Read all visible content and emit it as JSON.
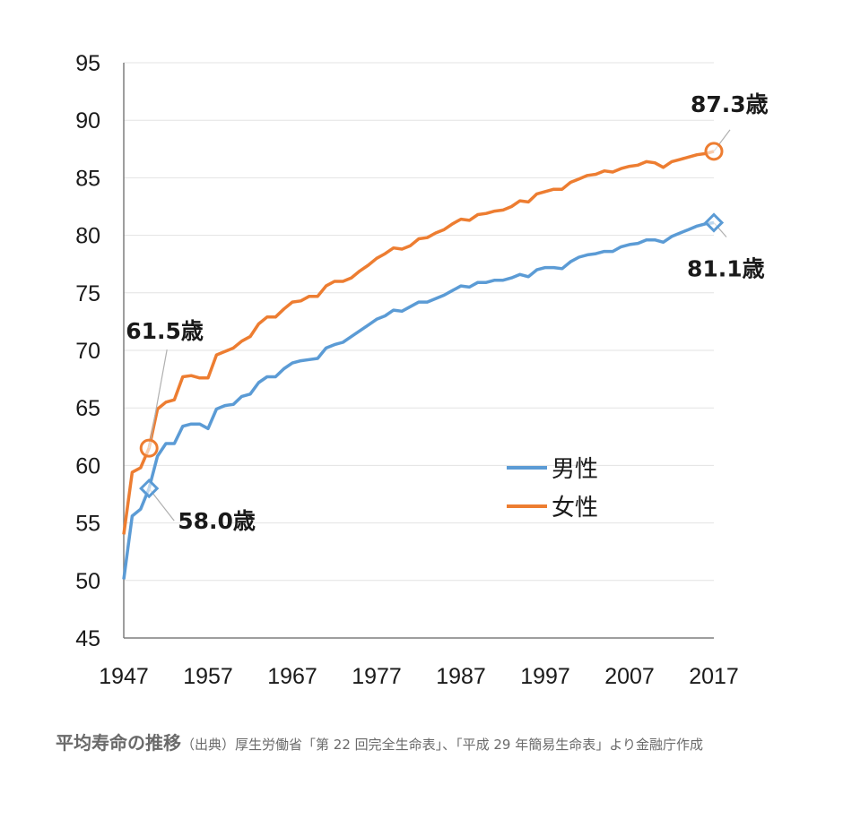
{
  "chart_data": {
    "type": "line",
    "title": "",
    "xlabel": "",
    "ylabel": "",
    "xlim": [
      1947,
      2017
    ],
    "ylim": [
      45,
      95
    ],
    "x_ticks": [
      "1947",
      "1957",
      "1967",
      "1977",
      "1987",
      "1997",
      "2007",
      "2017"
    ],
    "y_ticks": [
      "95",
      "90",
      "85",
      "80",
      "75",
      "70",
      "65",
      "60",
      "55",
      "50",
      "45"
    ],
    "grid": true,
    "legend_position": "right-middle",
    "x": [
      1947,
      1948,
      1949,
      1950,
      1951,
      1952,
      1953,
      1954,
      1955,
      1956,
      1957,
      1958,
      1959,
      1960,
      1961,
      1962,
      1963,
      1964,
      1965,
      1966,
      1967,
      1968,
      1969,
      1970,
      1971,
      1972,
      1973,
      1974,
      1975,
      1976,
      1977,
      1978,
      1979,
      1980,
      1981,
      1982,
      1983,
      1984,
      1985,
      1986,
      1987,
      1988,
      1989,
      1990,
      1991,
      1992,
      1993,
      1994,
      1995,
      1996,
      1997,
      1998,
      1999,
      2000,
      2001,
      2002,
      2003,
      2004,
      2005,
      2006,
      2007,
      2008,
      2009,
      2010,
      2011,
      2012,
      2013,
      2014,
      2015,
      2016,
      2017
    ],
    "series": [
      {
        "name": "男性",
        "color": "#5B9BD5",
        "values": [
          50.1,
          55.6,
          56.2,
          58.0,
          60.8,
          61.9,
          61.9,
          63.4,
          63.6,
          63.6,
          63.2,
          64.9,
          65.2,
          65.3,
          66.0,
          66.2,
          67.2,
          67.7,
          67.7,
          68.4,
          68.9,
          69.1,
          69.2,
          69.3,
          70.2,
          70.5,
          70.7,
          71.2,
          71.7,
          72.2,
          72.7,
          73.0,
          73.5,
          73.4,
          73.8,
          74.2,
          74.2,
          74.5,
          74.8,
          75.2,
          75.6,
          75.5,
          75.9,
          75.9,
          76.1,
          76.1,
          76.3,
          76.6,
          76.4,
          77.0,
          77.2,
          77.2,
          77.1,
          77.7,
          78.1,
          78.3,
          78.4,
          78.6,
          78.6,
          79.0,
          79.2,
          79.3,
          79.6,
          79.6,
          79.4,
          79.9,
          80.2,
          80.5,
          80.8,
          81.0,
          81.1
        ]
      },
      {
        "name": "女性",
        "color": "#ED7D31",
        "values": [
          54.0,
          59.4,
          59.8,
          61.5,
          64.9,
          65.5,
          65.7,
          67.7,
          67.8,
          67.6,
          67.6,
          69.6,
          69.9,
          70.2,
          70.8,
          71.2,
          72.3,
          72.9,
          72.9,
          73.6,
          74.2,
          74.3,
          74.7,
          74.7,
          75.6,
          76.0,
          76.0,
          76.3,
          76.9,
          77.4,
          78.0,
          78.4,
          78.9,
          78.8,
          79.1,
          79.7,
          79.8,
          80.2,
          80.5,
          81.0,
          81.4,
          81.3,
          81.8,
          81.9,
          82.1,
          82.2,
          82.5,
          83.0,
          82.9,
          83.6,
          83.8,
          84.0,
          84.0,
          84.6,
          84.9,
          85.2,
          85.3,
          85.6,
          85.5,
          85.8,
          86.0,
          86.1,
          86.4,
          86.3,
          85.9,
          86.4,
          86.6,
          86.8,
          87.0,
          87.1,
          87.3
        ]
      }
    ],
    "annotations": [
      {
        "label": "87.3歳",
        "series": 1,
        "x": 2017,
        "y": 87.3,
        "marker": "circle"
      },
      {
        "label": "81.1歳",
        "series": 0,
        "x": 2017,
        "y": 81.1,
        "marker": "diamond"
      },
      {
        "label": "61.5歳",
        "series": 1,
        "x": 1950,
        "y": 61.5,
        "marker": "circle"
      },
      {
        "label": "58.0歳",
        "series": 0,
        "x": 1950,
        "y": 58.0,
        "marker": "diamond"
      }
    ]
  },
  "caption": {
    "title": "平均寿命の推移",
    "source": "（出典）厚生労働省「第 22 回完全生命表」、「平成 29 年簡易生命表」より金融庁作成"
  }
}
